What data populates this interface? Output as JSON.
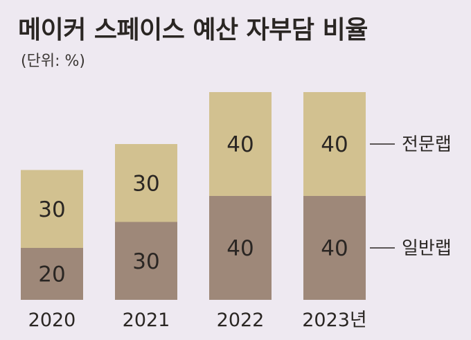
{
  "title": "메이커 스페이스 예산 자부담 비율",
  "unit": "(단위: %)",
  "chart_data": {
    "type": "bar",
    "stacked": true,
    "categories": [
      "2020",
      "2021",
      "2022",
      "2023년"
    ],
    "series": [
      {
        "name": "일반랩",
        "values": [
          20,
          30,
          40,
          40
        ],
        "color": "#9e8879"
      },
      {
        "name": "전문랩",
        "values": [
          30,
          30,
          40,
          40
        ],
        "color": "#d2c190"
      }
    ],
    "ylim": [
      0,
      80
    ],
    "grid": false,
    "legend": "right"
  }
}
